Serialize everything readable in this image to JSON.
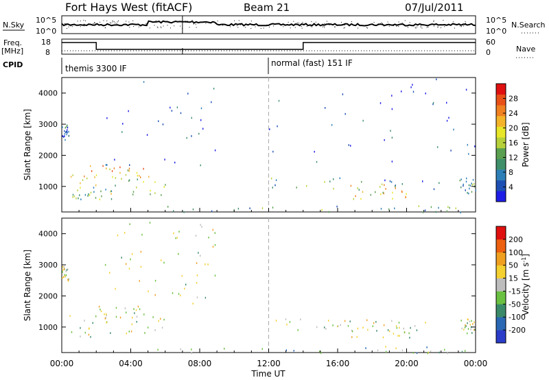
{
  "header": {
    "station": "Fort Hays West (fitACF)",
    "beam": "Beam 21",
    "date": "07/Jul/2011"
  },
  "top_panels": {
    "nsky_label": "N.Sky",
    "nsky_ticks": [
      "10^5",
      "10^0"
    ],
    "nsearch_label": "N.Search",
    "nsearch_ticks": [
      "10^5",
      "10^0"
    ],
    "freq_label": "Freq.",
    "freq_unit": "[MHz]",
    "freq_ticks": [
      "18",
      "8"
    ],
    "nave_label": "Nave",
    "nave_ticks": [
      "60",
      "0"
    ],
    "cpid_label": "CPID",
    "cpid_segments": [
      {
        "start_h": 0,
        "label": "themis 3300 IF"
      },
      {
        "start_h": 12,
        "label": "normal (fast) 151 IF"
      }
    ]
  },
  "chart_data": [
    {
      "type": "heatmap",
      "id": "power",
      "ylabel": "Slant Range [km]",
      "xlabel": "Time UT",
      "xlim": [
        0,
        24
      ],
      "ylim": [
        180,
        4500
      ],
      "yticks": [
        1000,
        2000,
        3000,
        4000
      ],
      "xticks": [
        "00:00",
        "04:00",
        "08:00",
        "12:00",
        "16:00",
        "20:00",
        "00:00"
      ],
      "colorbar": {
        "label": "Power [dB]",
        "ticks": [
          "4",
          "8",
          "12",
          "16",
          "20",
          "24",
          "28"
        ],
        "colors": [
          "#1e1ee6",
          "#1e50b4",
          "#2e7fb8",
          "#3f8f6a",
          "#5aa050",
          "#b6d03a",
          "#e8e628",
          "#f4b42a",
          "#f08020",
          "#e85018",
          "#e01010"
        ]
      },
      "regions": [
        {
          "t": [
            0.0,
            0.4
          ],
          "r": [
            2500,
            3000
          ],
          "level": 0.2
        },
        {
          "t": [
            0.4,
            6.0
          ],
          "r": [
            700,
            1400
          ],
          "level": 0.55
        },
        {
          "t": [
            1.6,
            4.8
          ],
          "r": [
            1300,
            1700
          ],
          "level": 0.65
        },
        {
          "t": [
            0.6,
            3.0
          ],
          "r": [
            600,
            1000
          ],
          "level": 0.4
        },
        {
          "t": [
            2.5,
            9.0
          ],
          "r": [
            1600,
            4500
          ],
          "level": 0.15
        },
        {
          "t": [
            5.5,
            24.0
          ],
          "r": [
            180,
            400
          ],
          "level": 0.35
        },
        {
          "t": [
            12.0,
            22.0
          ],
          "r": [
            900,
            1300
          ],
          "level": 0.3
        },
        {
          "t": [
            16.5,
            20.5
          ],
          "r": [
            600,
            1100
          ],
          "level": 0.6
        },
        {
          "t": [
            23.0,
            24.0
          ],
          "r": [
            800,
            1300
          ],
          "level": 0.3
        },
        {
          "t": [
            12.0,
            24.0
          ],
          "r": [
            1800,
            4500
          ],
          "level": 0.1
        }
      ]
    },
    {
      "type": "heatmap",
      "id": "velocity",
      "ylabel": "Slant Range [km]",
      "xlabel": "Time UT",
      "xlim": [
        0,
        24
      ],
      "ylim": [
        180,
        4500
      ],
      "yticks": [
        1000,
        2000,
        3000,
        4000
      ],
      "xticks": [
        "00:00",
        "04:00",
        "08:00",
        "12:00",
        "16:00",
        "20:00",
        "00:00"
      ],
      "colorbar": {
        "label": "Velocity [m s^-1]",
        "ticks": [
          "200",
          "100",
          "50",
          "15",
          "-15",
          "-50",
          "-100",
          "-200"
        ],
        "colors": [
          "#2a3cc8",
          "#2a68b4",
          "#3a8a6a",
          "#6ac040",
          "#bdbdbd",
          "#f4d030",
          "#f0a020",
          "#ec6010",
          "#e01010"
        ]
      },
      "regions": [
        {
          "t": [
            0.0,
            0.4
          ],
          "r": [
            2500,
            3000
          ],
          "level": 0.5
        },
        {
          "t": [
            0.4,
            6.0
          ],
          "r": [
            700,
            1400
          ],
          "level": 0.5
        },
        {
          "t": [
            1.6,
            4.8
          ],
          "r": [
            1300,
            1700
          ],
          "level": 0.55
        },
        {
          "t": [
            2.5,
            9.0
          ],
          "r": [
            1600,
            4500
          ],
          "level": 0.5
        },
        {
          "t": [
            5.5,
            24.0
          ],
          "r": [
            180,
            400
          ],
          "level": 0.35
        },
        {
          "t": [
            12.0,
            22.0
          ],
          "r": [
            900,
            1300
          ],
          "level": 0.5
        },
        {
          "t": [
            16.5,
            20.5
          ],
          "r": [
            600,
            1100
          ],
          "level": 0.5
        },
        {
          "t": [
            23.0,
            24.0
          ],
          "r": [
            800,
            1300
          ],
          "level": 0.5
        }
      ]
    }
  ]
}
